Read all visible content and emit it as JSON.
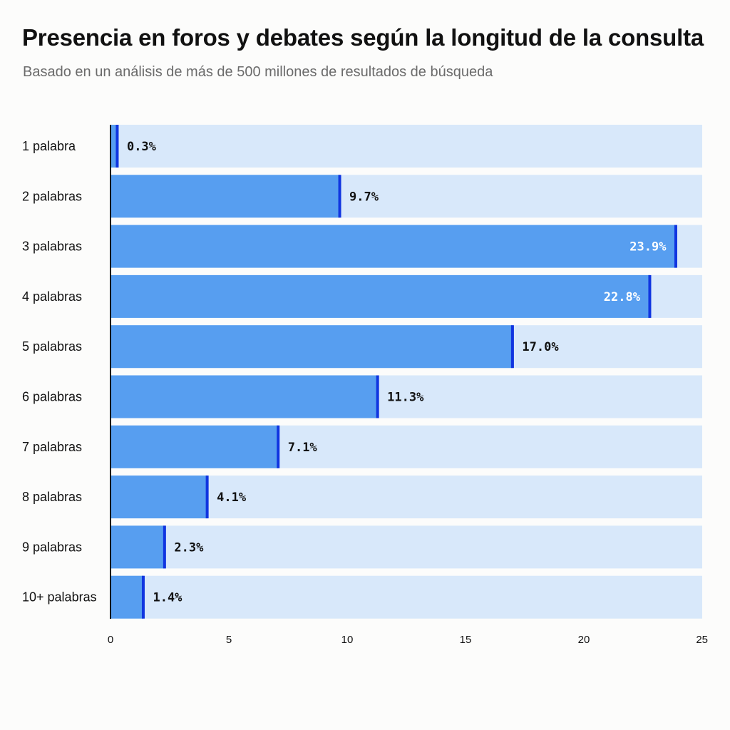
{
  "chart_data": {
    "type": "bar",
    "orientation": "horizontal",
    "title": "Presencia en foros y debates según la longitud de la consulta",
    "subtitle": "Basado en un análisis de más de 500 millones de resultados de búsqueda",
    "categories": [
      "1 palabra",
      "2 palabras",
      "3 palabras",
      "4 palabras",
      "5 palabras",
      "6 palabras",
      "7 palabras",
      "8 palabras",
      "9 palabras",
      "10+ palabras"
    ],
    "values": [
      0.3,
      9.7,
      23.9,
      22.8,
      17.0,
      11.3,
      7.1,
      4.1,
      2.3,
      1.4
    ],
    "value_labels": [
      "0.3%",
      "9.7%",
      "23.9%",
      "22.8%",
      "17.0%",
      "11.3%",
      "7.1%",
      "4.1%",
      "2.3%",
      "1.4%"
    ],
    "xlim": [
      0,
      25
    ],
    "x_ticks": [
      "0",
      "5",
      "10",
      "15",
      "20",
      "25"
    ],
    "xlabel": "",
    "ylabel": "",
    "grid": false,
    "legend": "none",
    "colors": {
      "bar_fill": "#579ef0",
      "bar_end_marker": "#1035e0",
      "track": "#d8e8fa",
      "axis": "#111111",
      "label_outside": "#111111",
      "label_inside": "#ffffff"
    }
  }
}
